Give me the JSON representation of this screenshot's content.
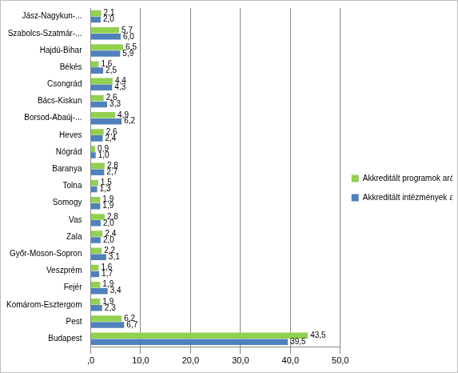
{
  "chart_data": {
    "type": "bar",
    "orientation": "horizontal",
    "categories": [
      "Jász-Nagykun-...",
      "Szabolcs-Szatmár-...",
      "Hajdú-Bihar",
      "Békés",
      "Csongrád",
      "Bács-Kiskun",
      "Borsod-Abaúj-...",
      "Heves",
      "Nógrád",
      "Baranya",
      "Tolna",
      "Somogy",
      "Vas",
      "Zala",
      "Győr-Moson-Sopron",
      "Veszprém",
      "Fejér",
      "Komárom-Esztergom",
      "Pest",
      "Budapest"
    ],
    "series": [
      {
        "name": "Akkreditált programok aránya (%)",
        "color": "#92d050",
        "values": [
          2.1,
          5.7,
          6.5,
          1.6,
          4.4,
          2.6,
          4.9,
          2.6,
          0.9,
          2.8,
          1.5,
          1.9,
          2.8,
          2.4,
          2.2,
          1.6,
          1.9,
          1.9,
          6.2,
          43.5
        ],
        "value_labels": [
          "2,1",
          "5,7",
          "6,5",
          "1,6",
          "4,4",
          "2,6",
          "4,9",
          "2,6",
          "0,9",
          "2,8",
          "1,5",
          "1,9",
          "2,8",
          "2,4",
          "2,2",
          "1,6",
          "1,9",
          "1,9",
          "6,2",
          "43,5"
        ]
      },
      {
        "name": "Akkreditált intézmények aránya (%)",
        "color": "#4f81bd",
        "values": [
          2.0,
          6.0,
          5.9,
          2.5,
          4.3,
          3.3,
          6.2,
          2.4,
          1.0,
          2.7,
          1.3,
          1.9,
          2.0,
          2.0,
          3.1,
          1.7,
          3.4,
          2.3,
          6.7,
          39.5
        ],
        "value_labels": [
          "2,0",
          "6,0",
          "5,9",
          "2,5",
          "4,3",
          "3,3",
          "6,2",
          "2,4",
          "1,0",
          "2,7",
          "1,3",
          "1,9",
          "2,0",
          "2,0",
          "3,1",
          "1,7",
          "3,4",
          "2,3",
          "6,7",
          "39,5"
        ]
      }
    ],
    "xlim": [
      0,
      50
    ],
    "xticks": [
      {
        "value": 0,
        "label": ",0"
      },
      {
        "value": 10,
        "label": "10,0"
      },
      {
        "value": 20,
        "label": "20,0"
      },
      {
        "value": 30,
        "label": "30,0"
      },
      {
        "value": 40,
        "label": "40,0"
      },
      {
        "value": 50,
        "label": "50,0"
      }
    ],
    "grid": true,
    "legend": "right",
    "data_labels": true
  }
}
